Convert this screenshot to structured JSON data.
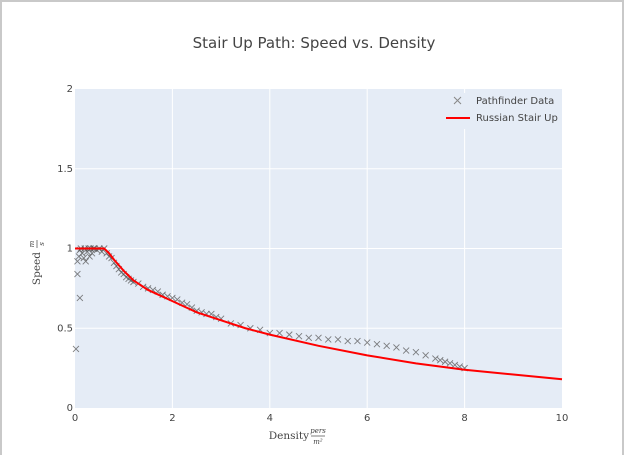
{
  "chart_data": {
    "type": "scatter",
    "title": "Stair Up Path: Speed vs. Density",
    "xlabel": "Density",
    "xlabel_unit_num": "pers",
    "xlabel_unit_den": "m²",
    "ylabel": "Speed",
    "ylabel_unit_num": "m",
    "ylabel_unit_den": "s",
    "xlim": [
      0,
      10
    ],
    "ylim": [
      0,
      2
    ],
    "x_ticks": [
      0,
      2,
      4,
      6,
      8,
      10
    ],
    "x_tick_labels": [
      "0",
      "2",
      "4",
      "6",
      "8",
      "10"
    ],
    "y_ticks": [
      0,
      0.5,
      1,
      1.5,
      2
    ],
    "y_tick_labels": [
      "0",
      "0.5",
      "1",
      "1.5",
      "2"
    ],
    "grid": true,
    "legend_position": "top-right",
    "colors": {
      "plot_bg": "#e5ecf6",
      "grid": "#ffffff",
      "scatter": "#555555",
      "line": "#ff0000"
    },
    "series": [
      {
        "name": "Pathfinder Data",
        "kind": "scatter",
        "marker": "x",
        "points": [
          [
            0.02,
            0.37
          ],
          [
            0.05,
            0.84
          ],
          [
            0.1,
            0.69
          ],
          [
            0.05,
            0.92
          ],
          [
            0.08,
            0.95
          ],
          [
            0.1,
            0.99
          ],
          [
            0.12,
            1.0
          ],
          [
            0.15,
            0.97
          ],
          [
            0.18,
            0.94
          ],
          [
            0.2,
            1.0
          ],
          [
            0.22,
            0.92
          ],
          [
            0.25,
            0.98
          ],
          [
            0.28,
            1.0
          ],
          [
            0.3,
            0.95
          ],
          [
            0.32,
            1.0
          ],
          [
            0.35,
            0.97
          ],
          [
            0.38,
            1.0
          ],
          [
            0.4,
            1.0
          ],
          [
            0.45,
            0.99
          ],
          [
            0.5,
            1.0
          ],
          [
            0.55,
            0.98
          ],
          [
            0.6,
            1.0
          ],
          [
            0.65,
            0.97
          ],
          [
            0.7,
            0.95
          ],
          [
            0.75,
            0.94
          ],
          [
            0.8,
            0.91
          ],
          [
            0.85,
            0.89
          ],
          [
            0.9,
            0.87
          ],
          [
            0.95,
            0.85
          ],
          [
            1.0,
            0.84
          ],
          [
            1.05,
            0.82
          ],
          [
            1.1,
            0.81
          ],
          [
            1.15,
            0.8
          ],
          [
            1.2,
            0.79
          ],
          [
            1.3,
            0.78
          ],
          [
            1.4,
            0.76
          ],
          [
            1.5,
            0.75
          ],
          [
            1.6,
            0.74
          ],
          [
            1.7,
            0.73
          ],
          [
            1.8,
            0.71
          ],
          [
            1.9,
            0.7
          ],
          [
            2.0,
            0.69
          ],
          [
            2.1,
            0.68
          ],
          [
            2.2,
            0.66
          ],
          [
            2.3,
            0.65
          ],
          [
            2.4,
            0.63
          ],
          [
            2.5,
            0.61
          ],
          [
            2.6,
            0.6
          ],
          [
            2.7,
            0.59
          ],
          [
            2.8,
            0.59
          ],
          [
            2.9,
            0.57
          ],
          [
            3.0,
            0.56
          ],
          [
            3.2,
            0.53
          ],
          [
            3.4,
            0.52
          ],
          [
            3.6,
            0.5
          ],
          [
            3.8,
            0.49
          ],
          [
            4.0,
            0.47
          ],
          [
            4.2,
            0.47
          ],
          [
            4.4,
            0.46
          ],
          [
            4.6,
            0.45
          ],
          [
            4.8,
            0.44
          ],
          [
            5.0,
            0.44
          ],
          [
            5.2,
            0.43
          ],
          [
            5.4,
            0.43
          ],
          [
            5.6,
            0.42
          ],
          [
            5.8,
            0.42
          ],
          [
            6.0,
            0.41
          ],
          [
            6.2,
            0.4
          ],
          [
            6.4,
            0.39
          ],
          [
            6.6,
            0.38
          ],
          [
            6.8,
            0.36
          ],
          [
            7.0,
            0.35
          ],
          [
            7.2,
            0.33
          ],
          [
            7.4,
            0.31
          ],
          [
            7.5,
            0.3
          ],
          [
            7.6,
            0.29
          ],
          [
            7.7,
            0.28
          ],
          [
            7.8,
            0.27
          ],
          [
            7.9,
            0.26
          ],
          [
            8.0,
            0.25
          ]
        ]
      },
      {
        "name": "Russian Stair Up",
        "kind": "line",
        "x": [
          0,
          0.6,
          0.7,
          0.8,
          1.0,
          1.2,
          1.5,
          2.0,
          2.5,
          3.0,
          3.5,
          4.0,
          5.0,
          6.0,
          7.0,
          8.0,
          9.0,
          10.0
        ],
        "y": [
          1.0,
          1.0,
          0.97,
          0.93,
          0.86,
          0.8,
          0.74,
          0.67,
          0.6,
          0.55,
          0.5,
          0.46,
          0.39,
          0.33,
          0.28,
          0.24,
          0.21,
          0.18
        ]
      }
    ]
  }
}
